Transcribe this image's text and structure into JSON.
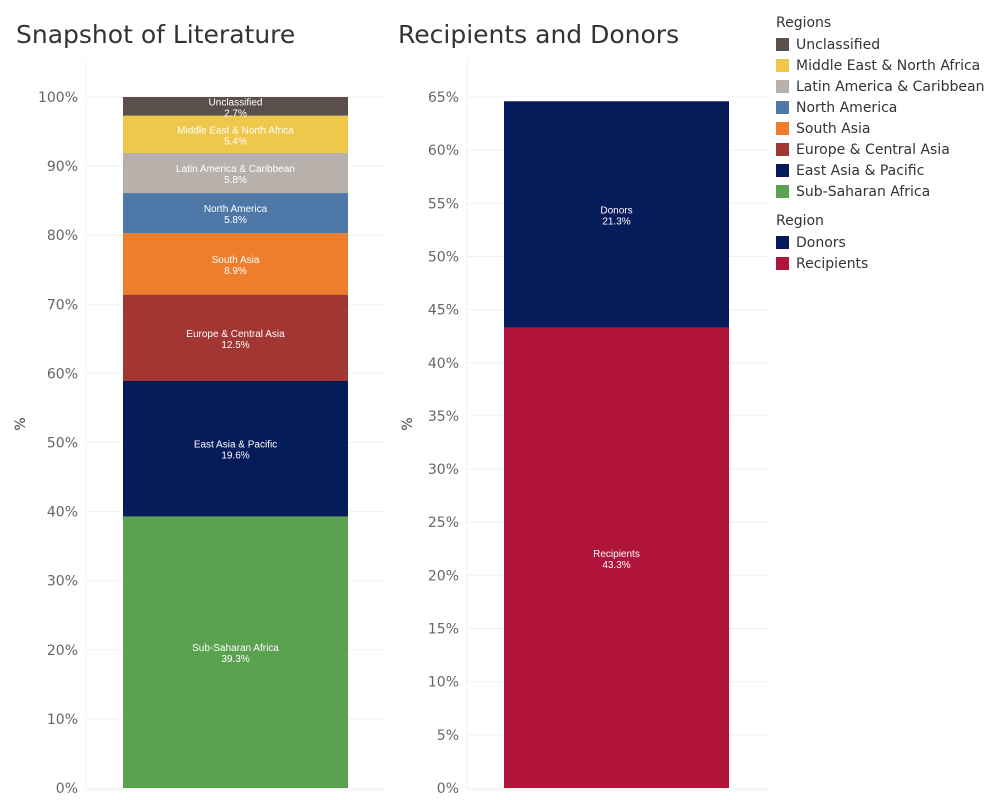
{
  "chart_data": [
    {
      "type": "bar",
      "stacked": true,
      "title": "Snapshot of Literature",
      "ylabel": "%",
      "ylim": [
        0,
        100
      ],
      "yticks": [
        "0%",
        "10%",
        "20%",
        "30%",
        "40%",
        "50%",
        "60%",
        "70%",
        "80%",
        "90%",
        "100%"
      ],
      "grid": true,
      "series": [
        {
          "name": "Sub-Saharan Africa",
          "value": 39.3,
          "label": "39.3%",
          "color": "#5aa150"
        },
        {
          "name": "East Asia & Pacific",
          "value": 19.6,
          "label": "19.6%",
          "color": "#061b59"
        },
        {
          "name": "Europe & Central Asia",
          "value": 12.5,
          "label": "12.5%",
          "color": "#a13633"
        },
        {
          "name": "South Asia",
          "value": 8.9,
          "label": "8.9%",
          "color": "#ef7e2c"
        },
        {
          "name": "North America",
          "value": 5.8,
          "label": "5.8%",
          "color": "#4d78a7"
        },
        {
          "name": "Latin America & Caribbean",
          "value": 5.8,
          "label": "5.8%",
          "color": "#b8b0aa"
        },
        {
          "name": "Middle East & North Africa",
          "value": 5.4,
          "label": "5.4%",
          "color": "#eec74b"
        },
        {
          "name": "Unclassified",
          "value": 2.7,
          "label": "2.7%",
          "color": "#5b4f4c"
        }
      ]
    },
    {
      "type": "bar",
      "stacked": true,
      "title": "Recipients and Donors",
      "ylabel": "%",
      "ylim": [
        0,
        65
      ],
      "yticks": [
        "0%",
        "5%",
        "10%",
        "15%",
        "20%",
        "25%",
        "30%",
        "35%",
        "40%",
        "45%",
        "50%",
        "55%",
        "60%",
        "65%"
      ],
      "grid": true,
      "series": [
        {
          "name": "Recipients",
          "value": 43.3,
          "label": "43.3%",
          "color": "#b0143a"
        },
        {
          "name": "Donors",
          "value": 21.3,
          "label": "21.3%",
          "color": "#061b59"
        }
      ]
    }
  ],
  "legends": [
    {
      "title": "Regions",
      "items": [
        {
          "label": "Unclassified",
          "color": "#5b4f4c"
        },
        {
          "label": "Middle East & North Africa",
          "color": "#eec74b"
        },
        {
          "label": "Latin America & Caribbean",
          "color": "#b8b0aa"
        },
        {
          "label": "North America",
          "color": "#4d78a7"
        },
        {
          "label": "South Asia",
          "color": "#ef7e2c"
        },
        {
          "label": "Europe & Central Asia",
          "color": "#a13633"
        },
        {
          "label": "East Asia & Pacific",
          "color": "#061b59"
        },
        {
          "label": "Sub-Saharan Africa",
          "color": "#5aa150"
        }
      ]
    },
    {
      "title": "Region",
      "items": [
        {
          "label": "Donors",
          "color": "#061b59"
        },
        {
          "label": "Recipients",
          "color": "#b0143a"
        }
      ]
    }
  ]
}
